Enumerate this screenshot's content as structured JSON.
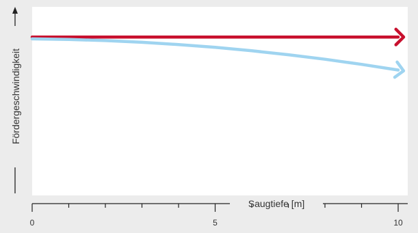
{
  "chart_data": {
    "type": "line",
    "xlabel": "Saugtiefe [m]",
    "ylabel": "Fördergeschwindigkeit",
    "xlim": [
      0,
      10
    ],
    "ylim": [
      0,
      10
    ],
    "x_ticks_labeled": [
      "0",
      "5",
      "10"
    ],
    "x_minor_step": 1,
    "grid": false,
    "legend": "none",
    "series": [
      {
        "color": "#c8102e",
        "x": [
          0,
          10
        ],
        "y": [
          8.4,
          8.4
        ]
      },
      {
        "color": "#9fd4f0",
        "x": [
          0,
          1,
          2,
          3,
          4,
          5,
          6,
          7,
          8,
          9,
          10
        ],
        "y": [
          8.3,
          8.27,
          8.21,
          8.12,
          8.0,
          7.85,
          7.67,
          7.46,
          7.22,
          6.95,
          6.65
        ]
      }
    ]
  }
}
